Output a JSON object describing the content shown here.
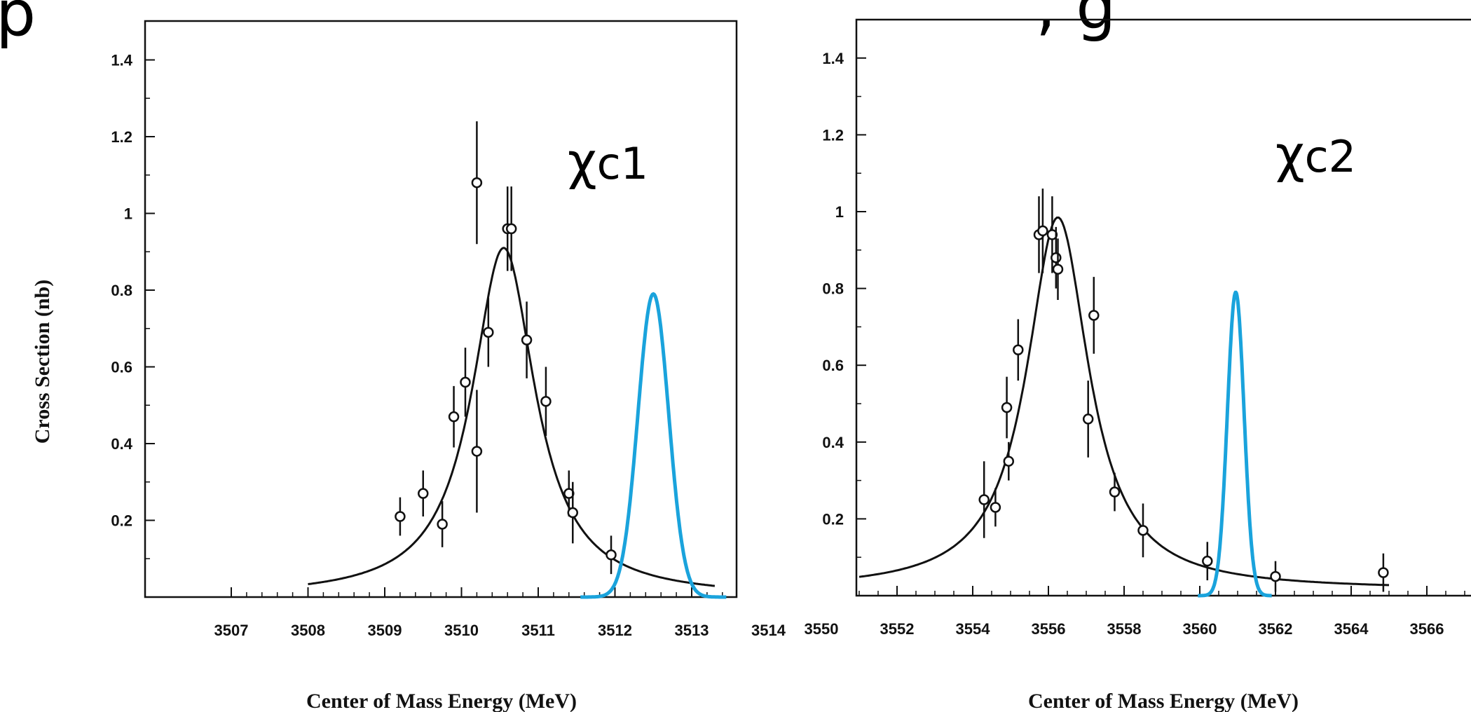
{
  "header_fragments": [
    "p",
    ", g"
  ],
  "colors": {
    "fit": "#111111",
    "beam": "#1aa3dc",
    "points": "#111111"
  },
  "chart_data": [
    {
      "type": "scatter",
      "peak_label": {
        "symbol": "χ",
        "sub": "c1"
      },
      "ylabel": "Cross Section (nb)",
      "xlabel": "Center of Mass Energy (MeV)",
      "xlim": [
        3507,
        3514
      ],
      "ylim": [
        0,
        1.5
      ],
      "xticks": [
        "3507",
        "3508",
        "3509",
        "3510",
        "3511",
        "3512",
        "3513",
        "3514"
      ],
      "yticks": [
        "0.2",
        "0.4",
        "0.6",
        "0.8",
        "1",
        "1.2",
        "1.4"
      ],
      "yticks_values": [
        0.2,
        0.4,
        0.6,
        0.8,
        1.0,
        1.2,
        1.4
      ],
      "xticks_values": [
        3507,
        3508,
        3509,
        3510,
        3511,
        3512,
        3513,
        3514
      ],
      "points": [
        {
          "x": 3509.2,
          "y": 0.21,
          "err": 0.05
        },
        {
          "x": 3509.5,
          "y": 0.27,
          "err": 0.06
        },
        {
          "x": 3509.75,
          "y": 0.19,
          "err": 0.06
        },
        {
          "x": 3509.9,
          "y": 0.47,
          "err": 0.08
        },
        {
          "x": 3510.05,
          "y": 0.56,
          "err": 0.09
        },
        {
          "x": 3510.2,
          "y": 0.38,
          "err": 0.16
        },
        {
          "x": 3510.2,
          "y": 1.08,
          "err": 0.16
        },
        {
          "x": 3510.35,
          "y": 0.69,
          "err": 0.09
        },
        {
          "x": 3510.6,
          "y": 0.96,
          "err": 0.11
        },
        {
          "x": 3510.65,
          "y": 0.96,
          "err": 0.11
        },
        {
          "x": 3510.85,
          "y": 0.67,
          "err": 0.1
        },
        {
          "x": 3511.1,
          "y": 0.51,
          "err": 0.09
        },
        {
          "x": 3511.4,
          "y": 0.27,
          "err": 0.06
        },
        {
          "x": 3511.45,
          "y": 0.22,
          "err": 0.08
        },
        {
          "x": 3511.95,
          "y": 0.11,
          "err": 0.05
        }
      ],
      "fit": {
        "type": "breit-wigner",
        "x0": 3510.55,
        "gamma_half": 0.5,
        "peak": 0.91,
        "base": 0.0,
        "xrange": [
          3508.0,
          3513.3
        ]
      },
      "beam": {
        "type": "gaussian",
        "x0": 3512.5,
        "sigma": 0.2,
        "peak": 0.79,
        "xrange": [
          3511.55,
          3513.45
        ]
      }
    },
    {
      "type": "scatter",
      "peak_label": {
        "symbol": "χ",
        "sub": "c2"
      },
      "ylabel": "",
      "xlabel": "Center of Mass Energy (MeV)",
      "xlim": [
        3550,
        3566
      ],
      "ylim": [
        0,
        1.5
      ],
      "xticks": [
        "3550",
        "3552",
        "3554",
        "3556",
        "3558",
        "3560",
        "3562",
        "3564",
        "3566"
      ],
      "yticks": [
        "0.2",
        "0.4",
        "0.6",
        "0.8",
        "1",
        "1.2",
        "1.4"
      ],
      "yticks_values": [
        0.2,
        0.4,
        0.6,
        0.8,
        1.0,
        1.2,
        1.4
      ],
      "xticks_values": [
        3550,
        3552,
        3554,
        3556,
        3558,
        3560,
        3562,
        3564,
        3566
      ],
      "points": [
        {
          "x": 3554.3,
          "y": 0.25,
          "err": 0.1
        },
        {
          "x": 3554.6,
          "y": 0.23,
          "err": 0.05
        },
        {
          "x": 3554.9,
          "y": 0.49,
          "err": 0.08
        },
        {
          "x": 3554.95,
          "y": 0.35,
          "err": 0.05
        },
        {
          "x": 3555.2,
          "y": 0.64,
          "err": 0.08
        },
        {
          "x": 3555.75,
          "y": 0.94,
          "err": 0.1
        },
        {
          "x": 3555.85,
          "y": 0.95,
          "err": 0.11
        },
        {
          "x": 3556.1,
          "y": 0.94,
          "err": 0.1
        },
        {
          "x": 3556.2,
          "y": 0.88,
          "err": 0.08
        },
        {
          "x": 3556.25,
          "y": 0.85,
          "err": 0.08
        },
        {
          "x": 3557.05,
          "y": 0.46,
          "err": 0.1
        },
        {
          "x": 3557.2,
          "y": 0.73,
          "err": 0.1
        },
        {
          "x": 3557.75,
          "y": 0.27,
          "err": 0.05
        },
        {
          "x": 3558.5,
          "y": 0.17,
          "err": 0.07
        },
        {
          "x": 3560.2,
          "y": 0.09,
          "err": 0.05
        },
        {
          "x": 3562.0,
          "y": 0.05,
          "err": 0.04
        },
        {
          "x": 3564.85,
          "y": 0.06,
          "err": 0.05
        }
      ],
      "fit": {
        "type": "breit-wigner",
        "x0": 3556.25,
        "gamma_half": 1.0,
        "peak": 0.97,
        "base": 0.015,
        "xrange": [
          3551.0,
          3565.0
        ]
      },
      "beam": {
        "type": "gaussian",
        "x0": 3560.95,
        "sigma": 0.22,
        "peak": 0.79,
        "xrange": [
          3559.95,
          3561.9
        ]
      }
    }
  ]
}
